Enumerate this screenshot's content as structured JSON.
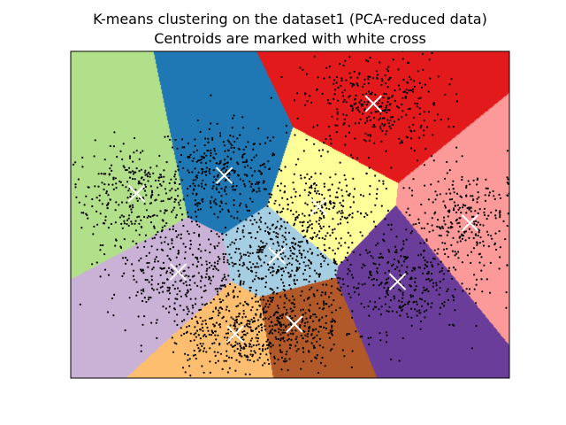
{
  "chart_data": {
    "type": "scatter",
    "title": "K-means clustering on the dataset1 (PCA-reduced data)",
    "subtitle": "Centroids are marked with white cross",
    "xlabel": "",
    "ylabel": "",
    "xlim": [
      -10,
      10
    ],
    "ylim": [
      -10,
      10
    ],
    "axis_ticks": "hidden",
    "grid": false,
    "point_color": "#000000",
    "centroid_color": "#ffffff",
    "regions": [
      {
        "color": "#b2df8a",
        "centroid": [
          -7.0,
          1.3
        ]
      },
      {
        "color": "#1f78b4",
        "centroid": [
          -3.0,
          2.4
        ]
      },
      {
        "color": "#e31a1c",
        "centroid": [
          3.8,
          6.8
        ]
      },
      {
        "color": "#fb9a99",
        "centroid": [
          8.2,
          -0.5
        ]
      },
      {
        "color": "#ffff99",
        "centroid": [
          1.3,
          0.5
        ]
      },
      {
        "color": "#a6cee3",
        "centroid": [
          -0.6,
          -2.5
        ]
      },
      {
        "color": "#cab2d6",
        "centroid": [
          -5.1,
          -3.5
        ]
      },
      {
        "color": "#6a3d9a",
        "centroid": [
          4.9,
          -4.1
        ]
      },
      {
        "color": "#fdbf6f",
        "centroid": [
          -2.5,
          -7.3
        ]
      },
      {
        "color": "#b15928",
        "centroid": [
          0.2,
          -6.7
        ]
      }
    ],
    "clusters": [
      {
        "center": [
          -7.0,
          1.3
        ],
        "spread": [
          1.6,
          1.5
        ],
        "count": 300
      },
      {
        "center": [
          -3.0,
          2.4
        ],
        "spread": [
          1.4,
          1.5
        ],
        "count": 320
      },
      {
        "center": [
          3.8,
          6.8
        ],
        "spread": [
          1.6,
          1.5
        ],
        "count": 340
      },
      {
        "center": [
          8.2,
          -0.5
        ],
        "spread": [
          1.5,
          1.7
        ],
        "count": 320
      },
      {
        "center": [
          1.3,
          0.5
        ],
        "spread": [
          1.4,
          1.3
        ],
        "count": 240
      },
      {
        "center": [
          -0.6,
          -2.5
        ],
        "spread": [
          1.5,
          1.3
        ],
        "count": 320
      },
      {
        "center": [
          -5.1,
          -3.5
        ],
        "spread": [
          1.6,
          1.5
        ],
        "count": 300
      },
      {
        "center": [
          4.9,
          -4.1
        ],
        "spread": [
          1.5,
          1.6
        ],
        "count": 300
      },
      {
        "center": [
          -2.5,
          -7.3
        ],
        "spread": [
          1.5,
          1.2
        ],
        "count": 330
      },
      {
        "center": [
          0.2,
          -6.7
        ],
        "spread": [
          1.5,
          1.3
        ],
        "count": 320
      }
    ]
  }
}
